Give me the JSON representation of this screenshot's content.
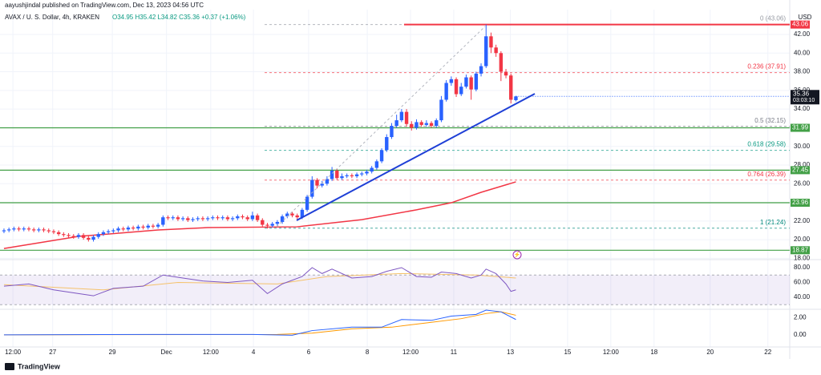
{
  "header": {
    "publisher": "aayushjindal published on TradingView.com, Dec 13, 2023 04:56 UTC",
    "symbol": "AVAX / U. S. Dollar, 4h, KRAKEN",
    "ohlc": "O34.95 H35.42 L34.82 C35.36 +0.37 (+1.06%)",
    "currency": "USD",
    "brand": "TradingView"
  },
  "chart_data": {
    "type": "candlestick",
    "grid": true,
    "up_color": "#2962ff",
    "down_color": "#f23645",
    "xlim": [
      -0.8,
      158.1
    ],
    "xticks": [
      {
        "value": 1.8,
        "label": "12:00"
      },
      {
        "value": 9.8,
        "label": "27"
      },
      {
        "value": 21.8,
        "label": "29"
      },
      {
        "value": 32.7,
        "label": "Dec"
      },
      {
        "value": 41.6,
        "label": "12:00"
      },
      {
        "value": 50.2,
        "label": "4"
      },
      {
        "value": 61.3,
        "label": "6"
      },
      {
        "value": 73.1,
        "label": "8"
      },
      {
        "value": 81.8,
        "label": "12:00"
      },
      {
        "value": 90.5,
        "label": "11"
      },
      {
        "value": 101.9,
        "label": "13"
      },
      {
        "value": 113.4,
        "label": "15"
      },
      {
        "value": 122.1,
        "label": "12:00"
      },
      {
        "value": 130.8,
        "label": "18"
      },
      {
        "value": 142.1,
        "label": "20"
      },
      {
        "value": 153.7,
        "label": "22"
      }
    ],
    "ylim": [
      17.95,
      44.66
    ],
    "yticks": [
      {
        "value": 18,
        "label": "18.00"
      },
      {
        "value": 20,
        "label": "20.00"
      },
      {
        "value": 22,
        "label": "22.00"
      },
      {
        "value": 24,
        "label": "24.00"
      },
      {
        "value": 26,
        "label": "26.00"
      },
      {
        "value": 28,
        "label": "28.00"
      },
      {
        "value": 30,
        "label": "30.00"
      },
      {
        "value": 32,
        "label": "32.00"
      },
      {
        "value": 34,
        "label": "34.00"
      },
      {
        "value": 36,
        "label": "36.00"
      },
      {
        "value": 38,
        "label": "38.00"
      },
      {
        "value": 40,
        "label": "40.00"
      },
      {
        "value": 42,
        "label": "42.00"
      }
    ],
    "open": [
      20.9,
      21.0,
      21.1,
      21.2,
      21.1,
      21.2,
      21.1,
      21.0,
      21.1,
      21.0,
      20.9,
      20.8,
      20.6,
      20.5,
      20.4,
      20.3,
      20.5,
      20.2,
      20.0,
      20.3,
      20.6,
      20.8,
      20.9,
      21.0,
      21.2,
      21.1,
      21.3,
      21.2,
      21.4,
      21.3,
      21.5,
      21.4,
      21.6,
      22.4,
      22.3,
      22.4,
      22.2,
      22.3,
      22.1,
      22.2,
      22.3,
      22.2,
      22.3,
      22.4,
      22.3,
      22.4,
      22.2,
      22.3,
      22.5,
      22.4,
      22.2,
      22.6,
      22.1,
      21.6,
      21.5,
      21.7,
      21.9,
      22.5,
      22.8,
      22.6,
      22.4,
      23.2,
      24.6,
      26.4,
      25.8,
      26.0,
      26.5,
      27.4,
      26.6,
      26.8,
      26.9,
      26.8,
      27.0,
      27.1,
      27.3,
      27.7,
      28.4,
      29.6,
      31.0,
      32.2,
      32.8,
      33.7,
      32.4,
      32.0,
      32.6,
      32.3,
      32.5,
      32.2,
      32.8,
      35.0,
      36.8,
      37.2,
      35.6,
      36.4,
      37.4,
      36.1,
      37.8,
      38.6,
      41.8,
      40.6,
      40.0,
      38.0,
      37.6,
      34.95
    ],
    "high": [
      21.2,
      21.3,
      21.4,
      21.4,
      21.4,
      21.4,
      21.3,
      21.3,
      21.3,
      21.2,
      21.1,
      21.0,
      20.8,
      20.7,
      20.6,
      20.7,
      20.7,
      20.4,
      20.5,
      20.8,
      21.0,
      21.1,
      21.2,
      21.4,
      21.4,
      21.5,
      21.5,
      21.6,
      21.6,
      21.7,
      21.7,
      21.8,
      22.6,
      22.6,
      22.6,
      22.6,
      22.5,
      22.5,
      22.4,
      22.5,
      22.5,
      22.5,
      22.6,
      22.6,
      22.6,
      22.6,
      22.5,
      22.7,
      22.7,
      22.6,
      23.0,
      22.8,
      22.3,
      21.8,
      21.9,
      22.1,
      22.7,
      23.0,
      23.0,
      22.8,
      23.4,
      24.8,
      26.8,
      26.6,
      26.3,
      26.8,
      27.8,
      27.6,
      27.1,
      27.1,
      27.1,
      27.2,
      27.3,
      27.5,
      27.9,
      28.6,
      29.8,
      31.3,
      32.5,
      33.4,
      34.0,
      34.0,
      32.7,
      32.9,
      32.8,
      32.8,
      32.7,
      33.0,
      35.4,
      37.1,
      37.5,
      37.4,
      36.8,
      37.7,
      37.6,
      38.0,
      38.9,
      43.06,
      42.2,
      40.9,
      40.2,
      38.3,
      37.8,
      35.42
    ],
    "low": [
      20.7,
      20.8,
      20.9,
      20.9,
      20.9,
      20.9,
      20.8,
      20.8,
      20.8,
      20.7,
      20.6,
      20.4,
      20.3,
      20.2,
      20.1,
      20.1,
      20.0,
      19.8,
      19.8,
      20.1,
      20.4,
      20.6,
      20.7,
      20.8,
      20.9,
      20.9,
      21.0,
      21.0,
      21.1,
      21.1,
      21.2,
      21.2,
      21.4,
      22.1,
      22.1,
      22.0,
      22.0,
      21.9,
      21.9,
      22.0,
      22.0,
      22.0,
      22.1,
      22.1,
      22.1,
      22.0,
      22.0,
      22.1,
      22.2,
      22.0,
      22.0,
      21.9,
      21.4,
      21.2,
      21.3,
      21.5,
      21.7,
      22.3,
      22.4,
      22.2,
      22.2,
      23.0,
      24.4,
      25.5,
      25.6,
      25.8,
      26.3,
      26.4,
      26.4,
      26.6,
      26.6,
      26.6,
      26.8,
      26.9,
      27.1,
      27.5,
      28.2,
      29.4,
      30.8,
      32.0,
      32.6,
      32.1,
      31.7,
      31.8,
      32.1,
      32.1,
      32.0,
      32.0,
      32.6,
      34.8,
      36.5,
      35.3,
      35.4,
      36.2,
      35.0,
      35.9,
      37.5,
      38.4,
      40.0,
      39.6,
      37.0,
      37.3,
      34.6,
      34.82
    ],
    "close": [
      21.0,
      21.1,
      21.2,
      21.1,
      21.2,
      21.1,
      21.0,
      21.1,
      21.0,
      20.9,
      20.8,
      20.6,
      20.5,
      20.4,
      20.3,
      20.5,
      20.2,
      20.0,
      20.3,
      20.6,
      20.8,
      20.9,
      21.0,
      21.2,
      21.1,
      21.3,
      21.2,
      21.4,
      21.3,
      21.5,
      21.4,
      21.6,
      22.4,
      22.3,
      22.4,
      22.2,
      22.3,
      22.1,
      22.2,
      22.3,
      22.2,
      22.3,
      22.4,
      22.3,
      22.4,
      22.2,
      22.3,
      22.5,
      22.4,
      22.2,
      22.6,
      22.1,
      21.6,
      21.5,
      21.7,
      21.9,
      22.5,
      22.8,
      22.6,
      22.4,
      23.2,
      24.6,
      26.4,
      25.8,
      26.0,
      26.5,
      27.4,
      26.6,
      26.8,
      26.9,
      26.8,
      27.0,
      27.1,
      27.3,
      27.7,
      28.4,
      29.6,
      31.0,
      32.2,
      32.8,
      33.7,
      32.4,
      32.0,
      32.6,
      32.3,
      32.5,
      32.2,
      32.8,
      35.0,
      36.8,
      37.2,
      35.6,
      36.4,
      37.4,
      36.1,
      37.8,
      38.6,
      41.8,
      40.6,
      40.0,
      38.0,
      37.6,
      35.0,
      35.36
    ],
    "ema": {
      "color": "#f23645",
      "x": [
        0,
        15,
        31,
        41,
        59,
        72,
        83,
        90,
        96,
        103
      ],
      "values": [
        19.06,
        20.35,
        21.04,
        21.3,
        21.38,
        22.15,
        23.2,
        23.96,
        25.08,
        26.2
      ]
    },
    "last_price": {
      "value": 35.36,
      "countdown": "03:03:10",
      "color": "#131722"
    },
    "levels": [
      {
        "value": 43.06,
        "color": "#f23645",
        "from": 80.5
      },
      {
        "value": 31.99,
        "color": "#43a047",
        "from": -0.8
      },
      {
        "value": 27.45,
        "color": "#43a047",
        "from": -0.8
      },
      {
        "value": 23.96,
        "color": "#43a047",
        "from": -0.8
      },
      {
        "value": 18.87,
        "color": "#43a047",
        "from": -0.8
      }
    ],
    "fib": [
      {
        "label": "0 (43.06)",
        "value": 43.06,
        "color": "#9598a1"
      },
      {
        "label": "0.236 (37.91)",
        "value": 37.91,
        "color": "#f23645"
      },
      {
        "label": "0.5 (32.15)",
        "value": 32.15,
        "color": "#787b86"
      },
      {
        "label": "0.618 (29.58)",
        "value": 29.58,
        "color": "#089981"
      },
      {
        "label": "0.764 (26.39)",
        "value": 26.39,
        "color": "#f23645"
      },
      {
        "label": "1 (21.24)",
        "value": 21.24,
        "color": "#00897b"
      }
    ],
    "rsi": {
      "ylim": [
        24.9,
        89.7
      ],
      "band": [
        30,
        70
      ],
      "yticks": [
        {
          "value": 80,
          "label": "80.00"
        },
        {
          "value": 60,
          "label": "60.00"
        },
        {
          "value": 40,
          "label": "40.00"
        }
      ],
      "color": "#7e57c2",
      "ma_color": "#f5c26b",
      "x": [
        0,
        5,
        10,
        15,
        18,
        22,
        28,
        32,
        36,
        40,
        45,
        50,
        53,
        56,
        60,
        62,
        64,
        66,
        70,
        74,
        77,
        80,
        83,
        86,
        88,
        91,
        94,
        96,
        97,
        99,
        101,
        102,
        103
      ],
      "values": [
        55,
        58,
        50,
        45,
        42,
        52,
        55,
        70,
        66,
        62,
        60,
        63,
        45,
        58,
        68,
        80,
        72,
        78,
        66,
        68,
        75,
        80,
        68,
        67,
        74,
        72,
        66,
        70,
        78,
        72,
        58,
        48,
        50
      ],
      "ma_x": [
        0,
        20,
        35,
        55,
        65,
        80,
        95,
        103
      ],
      "ma_values": [
        57,
        50,
        60,
        58,
        68,
        72,
        70,
        66
      ]
    },
    "macd": {
      "ylim": [
        -1.33,
        3.0
      ],
      "yticks": [
        {
          "value": 2,
          "label": "2.00"
        },
        {
          "value": 0,
          "label": "0.00"
        }
      ],
      "color": "#2962ff",
      "signal_color": "#ff9800",
      "x": [
        0,
        30,
        50,
        58,
        62,
        70,
        76,
        80,
        86,
        90,
        95,
        97,
        100,
        103
      ],
      "values": [
        0.0,
        0.05,
        0.05,
        -0.05,
        0.5,
        0.9,
        0.9,
        1.8,
        1.7,
        2.2,
        2.4,
        2.9,
        2.7,
        1.8
      ],
      "signal_x": [
        0,
        55,
        62,
        70,
        78,
        85,
        92,
        97,
        100,
        103
      ],
      "signal_values": [
        0.0,
        0.05,
        0.2,
        0.7,
        0.9,
        1.4,
        1.9,
        2.5,
        2.7,
        2.3
      ]
    }
  }
}
